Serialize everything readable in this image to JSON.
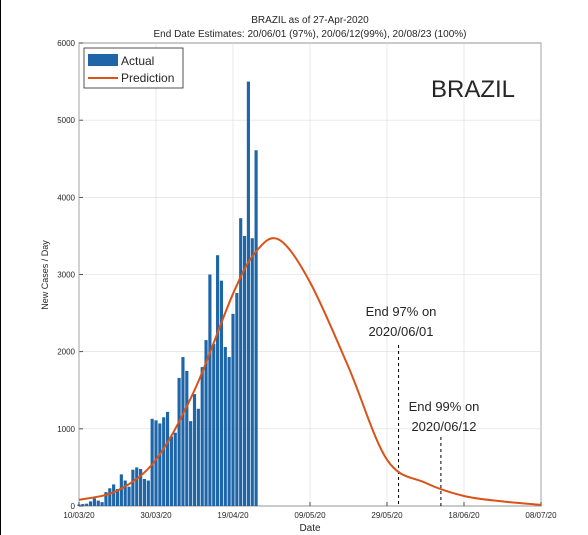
{
  "chart_data": {
    "type": "bar",
    "title": "BRAZIL as of 27-Apr-2020",
    "subtitle": "End Date Estimates: 20/06/01 (97%), 20/06/12(99%), 20/08/23 (100%)",
    "xlabel": "Date",
    "ylabel": "New Cases / Day",
    "country_label": "BRAZIL",
    "grid": true,
    "legend_placement": "top-left",
    "xlim": [
      "2020-03-10",
      "2020-07-08"
    ],
    "ylim": [
      0,
      6000
    ],
    "yticks": [
      0,
      1000,
      2000,
      3000,
      4000,
      5000,
      6000
    ],
    "xticks": [
      "10/03/20",
      "30/03/20",
      "19/04/20",
      "09/05/20",
      "29/05/20",
      "18/06/20",
      "08/07/20"
    ],
    "colors": {
      "actual": "#1f66a8",
      "prediction": "#d95319"
    },
    "series": [
      {
        "name": "Actual",
        "kind": "bar",
        "start_date": "2020-03-10",
        "values": [
          20,
          25,
          30,
          60,
          100,
          70,
          50,
          180,
          230,
          280,
          220,
          410,
          330,
          250,
          470,
          500,
          480,
          350,
          330,
          1130,
          1110,
          1070,
          1150,
          1220,
          900,
          950,
          1660,
          1930,
          1750,
          1100,
          1450,
          1260,
          1800,
          2150,
          3000,
          2100,
          3250,
          2920,
          2060,
          1930,
          2490,
          2760,
          3730,
          3500,
          5500,
          3470,
          4610
        ]
      },
      {
        "name": "Prediction",
        "kind": "line",
        "x": [
          "2020-03-10",
          "2020-03-20",
          "2020-03-30",
          "2020-04-09",
          "2020-04-19",
          "2020-04-25",
          "2020-05-01",
          "2020-05-09",
          "2020-05-19",
          "2020-05-29",
          "2020-06-08",
          "2020-06-18",
          "2020-06-28",
          "2020-07-08"
        ],
        "values": [
          80,
          200,
          600,
          1500,
          2750,
          3300,
          3450,
          2900,
          1800,
          600,
          300,
          130,
          60,
          15
        ]
      }
    ],
    "annotations": [
      {
        "line1": "End 97% on",
        "line2": "2020/06/01",
        "date": "2020-06-01"
      },
      {
        "line1": "End 99% on",
        "line2": "2020/06/12",
        "date": "2020-06-12"
      }
    ]
  }
}
